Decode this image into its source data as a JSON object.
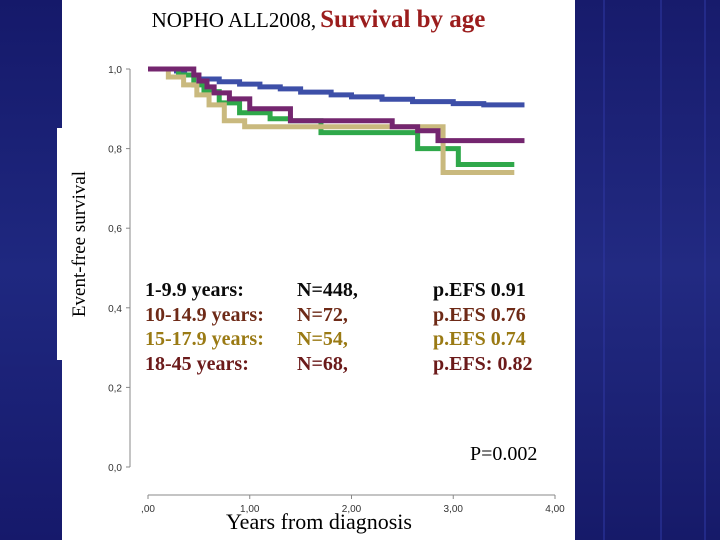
{
  "chart_data": {
    "type": "line",
    "title_part1": "NOPHO ALL2008,",
    "title_part2": "Survival by age",
    "ylabel": "Event-free survival",
    "xlabel": "Years from diagnosis",
    "ylim": [
      0,
      1.0
    ],
    "xlim": [
      0,
      4.0
    ],
    "yticks": [
      "0,0",
      "0,2",
      "0,4",
      "0,6",
      "0,8",
      "1,0"
    ],
    "xticks": [
      ",00",
      "1,00",
      "2,00",
      "3,00",
      "4,00"
    ],
    "p_value_text": "P=0.002",
    "series": [
      {
        "name": "1-9.9 years:",
        "n_text": "N=448,",
        "efs_text": "p.EFS 0.91",
        "color": "#3d4fa8",
        "points": [
          [
            0,
            1.0
          ],
          [
            0.28,
            0.995
          ],
          [
            0.36,
            0.985
          ],
          [
            0.5,
            0.975
          ],
          [
            0.7,
            0.968
          ],
          [
            0.9,
            0.962
          ],
          [
            1.1,
            0.955
          ],
          [
            1.3,
            0.95
          ],
          [
            1.5,
            0.942
          ],
          [
            1.8,
            0.935
          ],
          [
            2.0,
            0.93
          ],
          [
            2.3,
            0.924
          ],
          [
            2.6,
            0.918
          ],
          [
            3.0,
            0.913
          ],
          [
            3.3,
            0.91
          ],
          [
            3.7,
            0.91
          ]
        ]
      },
      {
        "name": "10-14.9 years:",
        "n_text": "N=72,",
        "efs_text": "p.EFS 0.76",
        "color": "#2fa84a",
        "points": [
          [
            0,
            1.0
          ],
          [
            0.3,
            0.985
          ],
          [
            0.45,
            0.96
          ],
          [
            0.55,
            0.943
          ],
          [
            0.7,
            0.915
          ],
          [
            0.9,
            0.89
          ],
          [
            1.2,
            0.875
          ],
          [
            1.4,
            0.87
          ],
          [
            1.7,
            0.84
          ],
          [
            2.65,
            0.84
          ],
          [
            2.65,
            0.8
          ],
          [
            3.05,
            0.8
          ],
          [
            3.05,
            0.76
          ],
          [
            3.6,
            0.76
          ]
        ]
      },
      {
        "name": "15-17.9 years:",
        "n_text": "N=54,",
        "efs_text": "p.EFS 0.74",
        "color": "#c9b97e",
        "points": [
          [
            0,
            1.0
          ],
          [
            0.2,
            0.98
          ],
          [
            0.35,
            0.96
          ],
          [
            0.48,
            0.935
          ],
          [
            0.6,
            0.91
          ],
          [
            0.75,
            0.87
          ],
          [
            0.95,
            0.855
          ],
          [
            1.2,
            0.855
          ],
          [
            2.03,
            0.855
          ],
          [
            2.03,
            0.855
          ],
          [
            2.9,
            0.855
          ],
          [
            2.9,
            0.74
          ],
          [
            3.6,
            0.74
          ]
        ]
      },
      {
        "name": "18-45 years:",
        "n_text": "N=68,",
        "efs_text": "p.EFS: 0.82",
        "color": "#74266f",
        "points": [
          [
            0,
            1.0
          ],
          [
            0.45,
            0.985
          ],
          [
            0.5,
            0.97
          ],
          [
            0.58,
            0.955
          ],
          [
            0.65,
            0.94
          ],
          [
            0.8,
            0.925
          ],
          [
            1.0,
            0.9
          ],
          [
            1.4,
            0.87
          ],
          [
            2.0,
            0.87
          ],
          [
            2.4,
            0.855
          ],
          [
            2.65,
            0.845
          ],
          [
            2.85,
            0.82
          ],
          [
            3.7,
            0.82
          ]
        ]
      }
    ]
  }
}
